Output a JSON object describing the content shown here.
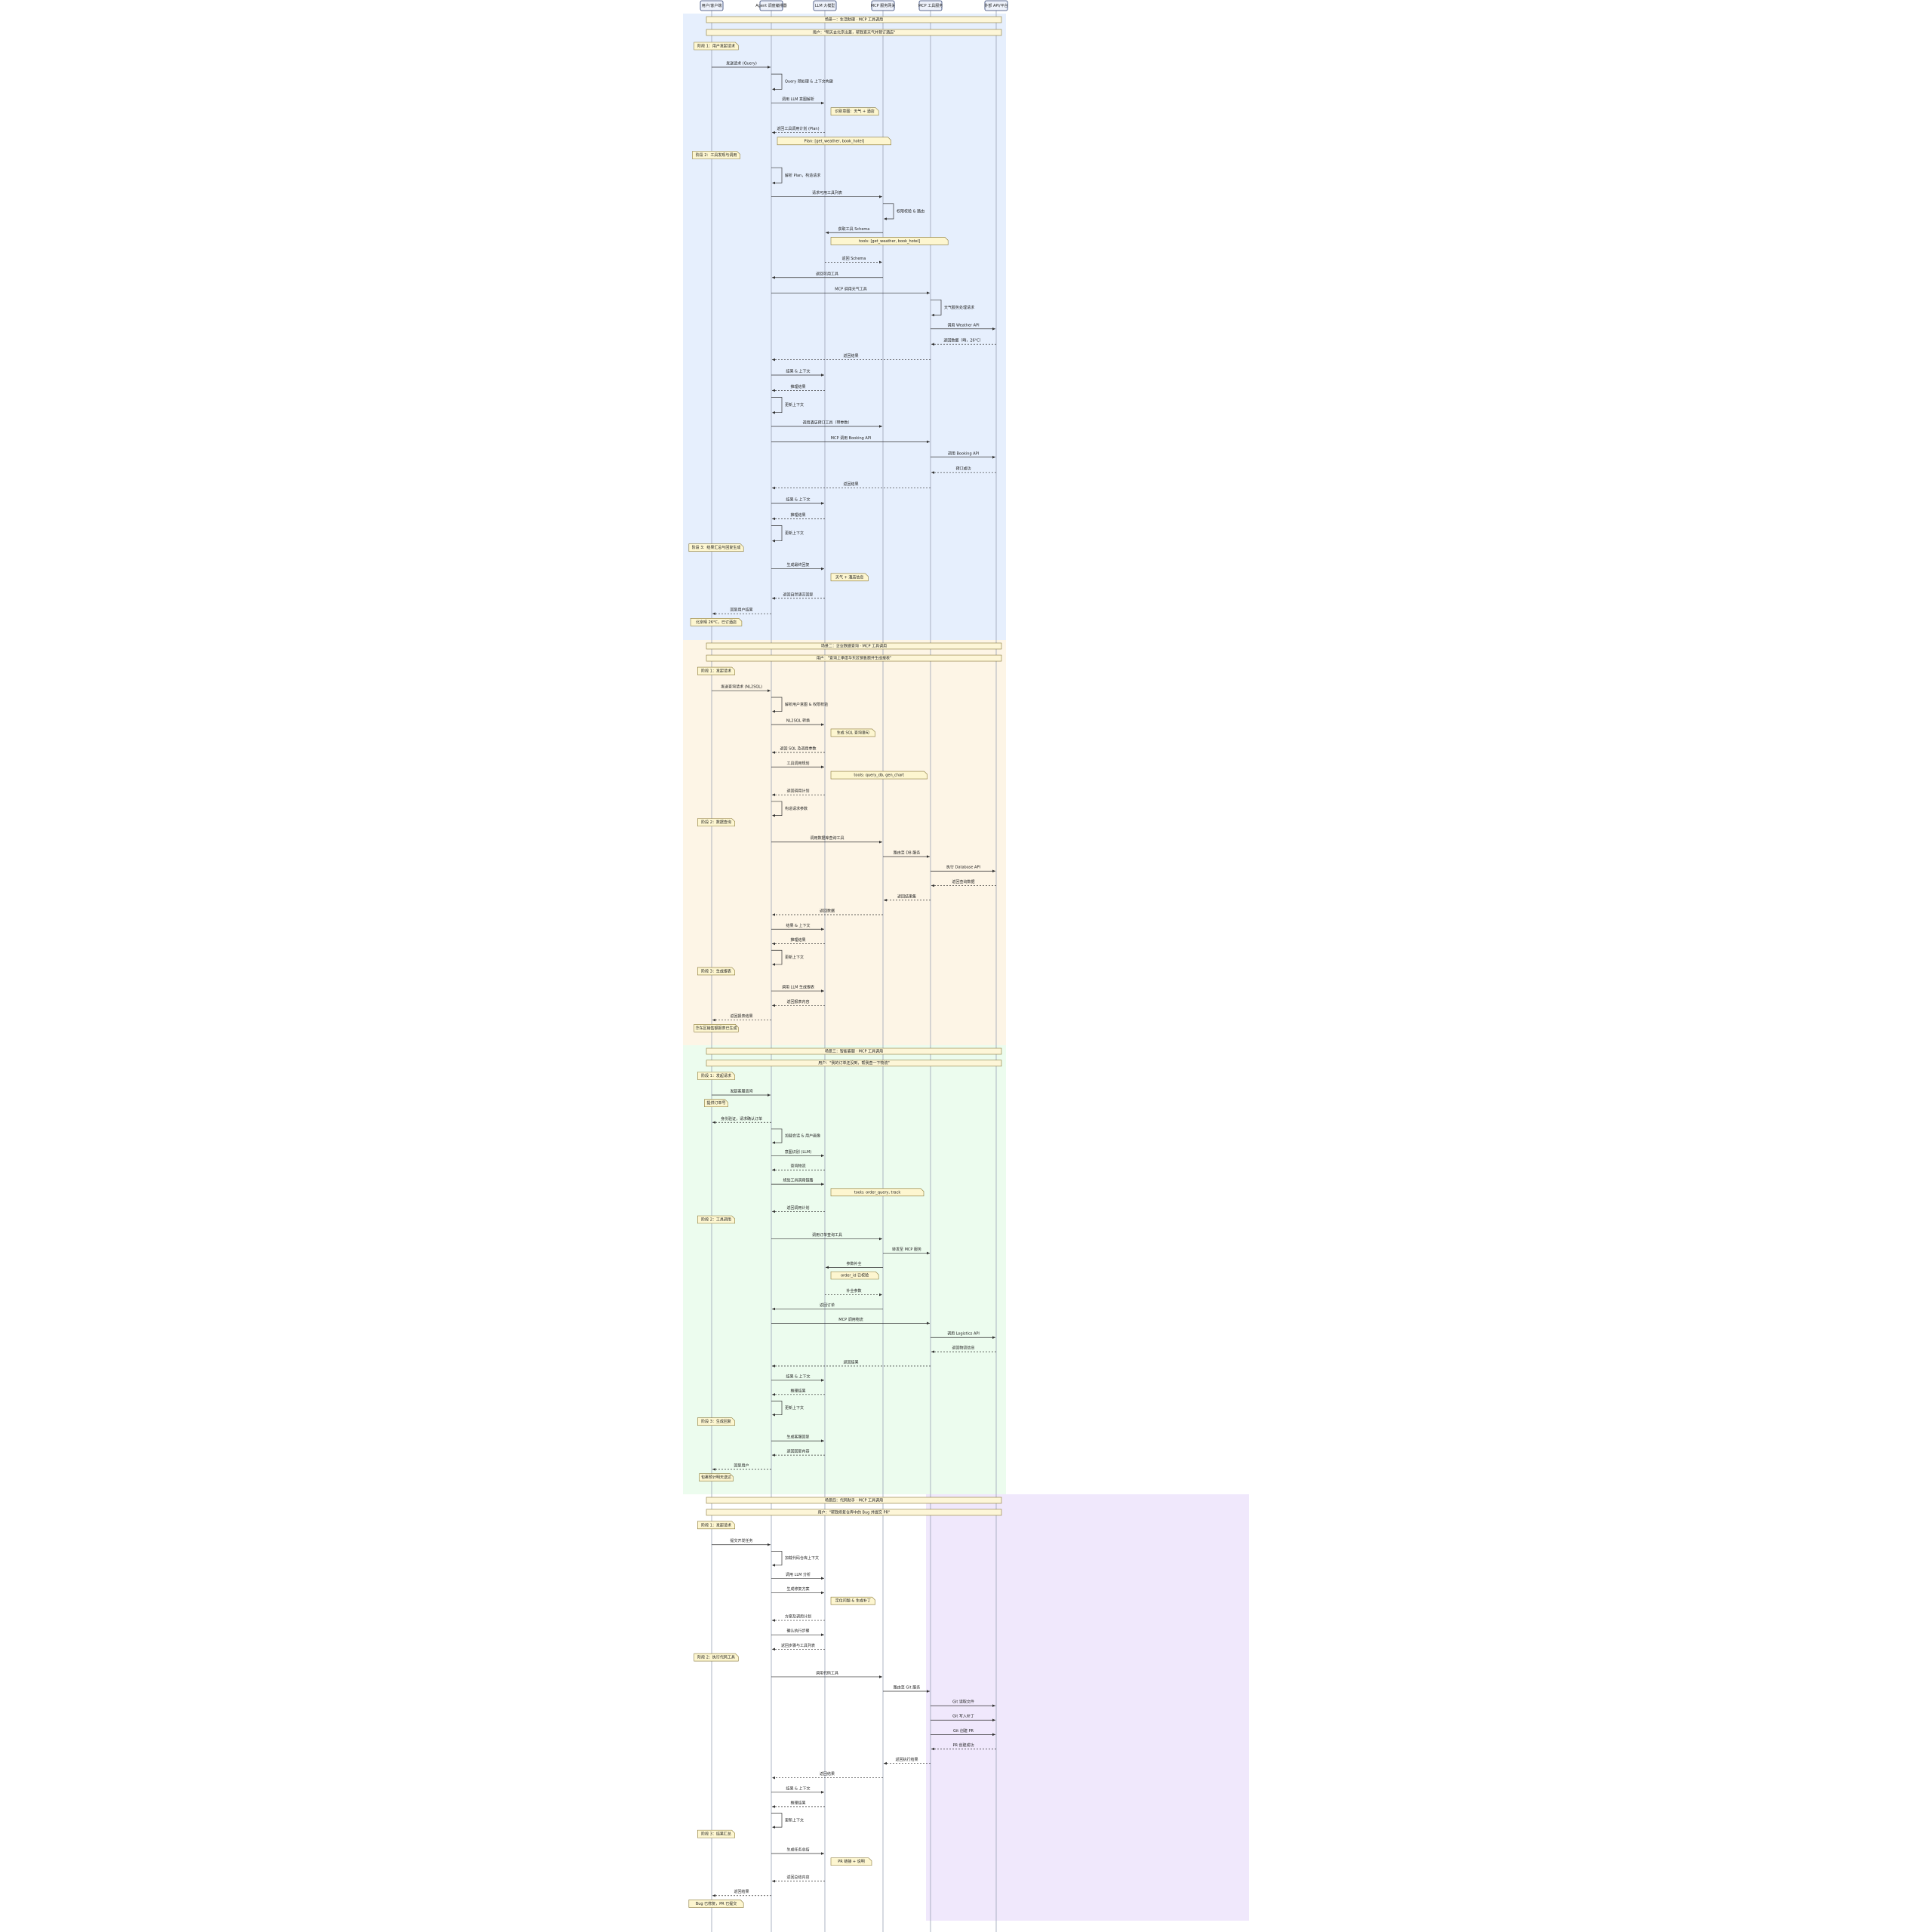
{
  "participants": [
    "用户/客户端",
    "Agent 调度编排器",
    "LLM 大模型",
    "MCP 服务网关",
    "MCP 工具服务",
    "外部 API/平台"
  ],
  "scenarios": [
    {
      "color": "#e6effd",
      "events": [
        {
          "kind": "banner",
          "text": "场景一：生活助理 · MCP 工具调用"
        },
        {
          "kind": "banner",
          "text": "用户：\"明天去北京出差，帮我查天气并预订酒店\""
        },
        {
          "kind": "note",
          "at": 0,
          "text": "阶段 1：用户发起请求"
        },
        {
          "kind": "msg",
          "from": 0,
          "to": 1,
          "text": "发送请求 (Query)"
        },
        {
          "kind": "self",
          "at": 1,
          "text": "Query 预处理 & 上下文构建"
        },
        {
          "kind": "msg",
          "from": 1,
          "to": 2,
          "text": "调用 LLM 意图解析"
        },
        {
          "kind": "note",
          "at": 2,
          "text": "识别意图：天气 + 酒店"
        },
        {
          "kind": "msg",
          "from": 2,
          "to": 1,
          "dashed": true,
          "text": "返回工具调用计划 (Plan)"
        },
        {
          "kind": "note",
          "at": 1,
          "text": "Plan: [get_weather, book_hotel]"
        },
        {
          "kind": "note",
          "at": 0,
          "text": "阶段 2：工具发现与调用"
        },
        {
          "kind": "self",
          "at": 1,
          "text": "解析 Plan，构造请求"
        },
        {
          "kind": "msg",
          "from": 1,
          "to": 3,
          "text": "请求可用工具列表"
        },
        {
          "kind": "self",
          "at": 3,
          "text": "权限校验 & 路由"
        },
        {
          "kind": "msg",
          "from": 3,
          "to": 2,
          "text": "获取工具 Schema"
        },
        {
          "kind": "note",
          "at": 2,
          "text": "tools: [get_weather, book_hotel]"
        },
        {
          "kind": "msg",
          "from": 2,
          "to": 3,
          "dashed": true,
          "text": "返回 Schema"
        },
        {
          "kind": "msg",
          "from": 3,
          "to": 1,
          "text": "返回可用工具"
        },
        {
          "kind": "msg",
          "from": 1,
          "to": 4,
          "text": "MCP 调用天气工具"
        },
        {
          "kind": "self",
          "at": 4,
          "text": "天气服务处理请求"
        },
        {
          "kind": "msg",
          "from": 4,
          "to": 5,
          "text": "调用 Weather API"
        },
        {
          "kind": "msg",
          "from": 5,
          "to": 4,
          "dashed": true,
          "text": "返回数据（晴，26°C）"
        },
        {
          "kind": "msg",
          "from": 4,
          "to": 1,
          "dashed": true,
          "text": "返回结果"
        },
        {
          "kind": "msg",
          "from": 1,
          "to": 2,
          "text": "结果 & 上下文"
        },
        {
          "kind": "msg",
          "from": 2,
          "to": 1,
          "dashed": true,
          "text": "推理结果"
        },
        {
          "kind": "self",
          "at": 1,
          "text": "更新上下文"
        },
        {
          "kind": "msg",
          "from": 1,
          "to": 3,
          "text": "调用酒店预订工具（带参数）"
        },
        {
          "kind": "msg",
          "from": 1,
          "to": 4,
          "text": "MCP 调用 Booking API"
        },
        {
          "kind": "msg",
          "from": 4,
          "to": 5,
          "text": "调用 Booking API"
        },
        {
          "kind": "msg",
          "from": 5,
          "to": 4,
          "dashed": true,
          "text": "预订成功"
        },
        {
          "kind": "msg",
          "from": 4,
          "to": 1,
          "dashed": true,
          "text": "返回结果"
        },
        {
          "kind": "msg",
          "from": 1,
          "to": 2,
          "text": "结果 & 上下文"
        },
        {
          "kind": "msg",
          "from": 2,
          "to": 1,
          "dashed": true,
          "text": "推理结果"
        },
        {
          "kind": "self",
          "at": 1,
          "text": "更新上下文"
        },
        {
          "kind": "note",
          "at": 0,
          "text": "阶段 3：结果汇总与回复生成"
        },
        {
          "kind": "msg",
          "from": 1,
          "to": 2,
          "text": "生成最终回复"
        },
        {
          "kind": "note",
          "at": 2,
          "text": "天气 + 酒店信息"
        },
        {
          "kind": "msg",
          "from": 2,
          "to": 1,
          "dashed": true,
          "text": "返回自然语言回复"
        },
        {
          "kind": "msg",
          "from": 1,
          "to": 0,
          "dashed": true,
          "text": "回复用户结果"
        },
        {
          "kind": "note",
          "at": 0,
          "text": "北京晴 26°C，已订酒店"
        }
      ]
    },
    {
      "color": "#fdf5e6",
      "events": [
        {
          "kind": "banner",
          "text": "场景二：企业数据查询 · MCP 工具调用"
        },
        {
          "kind": "banner",
          "text": "用户：\"查询上季度华东区销售额并生成报表\""
        },
        {
          "kind": "note",
          "at": 0,
          "text": "阶段 1：发起请求"
        },
        {
          "kind": "msg",
          "from": 0,
          "to": 1,
          "text": "发送查询请求 (NL2SQL)"
        },
        {
          "kind": "self",
          "at": 1,
          "text": "解析用户意图 & 权限校验"
        },
        {
          "kind": "msg",
          "from": 1,
          "to": 2,
          "text": "NL2SQL 转换"
        },
        {
          "kind": "note",
          "at": 2,
          "text": "生成 SQL 查询语句"
        },
        {
          "kind": "msg",
          "from": 2,
          "to": 1,
          "dashed": true,
          "text": "返回 SQL 及调用参数"
        },
        {
          "kind": "msg",
          "from": 1,
          "to": 2,
          "text": "工具调用规划"
        },
        {
          "kind": "note",
          "at": 2,
          "text": "tools: query_db, gen_chart"
        },
        {
          "kind": "msg",
          "from": 2,
          "to": 1,
          "dashed": true,
          "text": "返回调用计划"
        },
        {
          "kind": "self",
          "at": 1,
          "text": "构造请求参数"
        },
        {
          "kind": "note",
          "at": 0,
          "text": "阶段 2：数据查询"
        },
        {
          "kind": "msg",
          "from": 1,
          "to": 3,
          "text": "调用数据库查询工具"
        },
        {
          "kind": "msg",
          "from": 3,
          "to": 4,
          "text": "路由至 DB 服务"
        },
        {
          "kind": "msg",
          "from": 4,
          "to": 5,
          "text": "执行 Database API"
        },
        {
          "kind": "msg",
          "from": 5,
          "to": 4,
          "dashed": true,
          "text": "返回查询数据"
        },
        {
          "kind": "msg",
          "from": 4,
          "to": 3,
          "dashed": true,
          "text": "返回结果集"
        },
        {
          "kind": "msg",
          "from": 3,
          "to": 1,
          "dashed": true,
          "text": "返回数据"
        },
        {
          "kind": "msg",
          "from": 1,
          "to": 2,
          "text": "结果 & 上下文"
        },
        {
          "kind": "msg",
          "from": 2,
          "to": 1,
          "dashed": true,
          "text": "推理结果"
        },
        {
          "kind": "self",
          "at": 1,
          "text": "更新上下文"
        },
        {
          "kind": "note",
          "at": 0,
          "text": "阶段 3：生成报表"
        },
        {
          "kind": "msg",
          "from": 1,
          "to": 2,
          "text": "调用 LLM 生成报表"
        },
        {
          "kind": "msg",
          "from": 2,
          "to": 1,
          "dashed": true,
          "text": "返回报表内容"
        },
        {
          "kind": "msg",
          "from": 1,
          "to": 0,
          "dashed": true,
          "text": "返回报表结果"
        },
        {
          "kind": "note",
          "at": 0,
          "text": "华东区销售额报表已生成"
        }
      ]
    },
    {
      "color": "#ecfcee",
      "events": [
        {
          "kind": "banner",
          "text": "场景三：智能客服 · MCP 工具调用"
        },
        {
          "kind": "banner",
          "text": "用户：\"我的订单还没到，帮我查一下物流\""
        },
        {
          "kind": "note",
          "at": 0,
          "text": "阶段 1：发起请求"
        },
        {
          "kind": "msg",
          "from": 0,
          "to": 1,
          "text": "发起客服咨询"
        },
        {
          "kind": "note",
          "at": 0,
          "text": "提供订单号"
        },
        {
          "kind": "msg",
          "from": 1,
          "to": 0,
          "dashed": true,
          "text": "身份验证，请求确认订单"
        },
        {
          "kind": "self",
          "at": 1,
          "text": "加载会话 & 用户画像"
        },
        {
          "kind": "msg",
          "from": 1,
          "to": 2,
          "text": "意图识别 (LLM)"
        },
        {
          "kind": "msg",
          "from": 2,
          "to": 1,
          "dashed": true,
          "text": "查询物流"
        },
        {
          "kind": "msg",
          "from": 1,
          "to": 2,
          "text": "规划工具调用链路"
        },
        {
          "kind": "note",
          "at": 2,
          "text": "tools: order_query, track"
        },
        {
          "kind": "msg",
          "from": 2,
          "to": 1,
          "dashed": true,
          "text": "返回调用计划"
        },
        {
          "kind": "note",
          "at": 0,
          "text": "阶段 2：工具调用"
        },
        {
          "kind": "msg",
          "from": 1,
          "to": 3,
          "text": "调用订单查询工具"
        },
        {
          "kind": "msg",
          "from": 3,
          "to": 4,
          "text": "转发至 MCP 服务"
        },
        {
          "kind": "msg",
          "from": 3,
          "to": 2,
          "text": "参数补全"
        },
        {
          "kind": "note",
          "at": 2,
          "text": "order_id 已校验"
        },
        {
          "kind": "msg",
          "from": 2,
          "to": 3,
          "dashed": true,
          "text": "补全参数"
        },
        {
          "kind": "msg",
          "from": 3,
          "to": 1,
          "text": "返回订单"
        },
        {
          "kind": "msg",
          "from": 1,
          "to": 4,
          "text": "MCP 调用物流"
        },
        {
          "kind": "msg",
          "from": 4,
          "to": 5,
          "text": "调用 Logistics API"
        },
        {
          "kind": "msg",
          "from": 5,
          "to": 4,
          "dashed": true,
          "text": "返回物流信息"
        },
        {
          "kind": "msg",
          "from": 4,
          "to": 1,
          "dashed": true,
          "text": "返回结果"
        },
        {
          "kind": "msg",
          "from": 1,
          "to": 2,
          "text": "结果 & 上下文"
        },
        {
          "kind": "msg",
          "from": 2,
          "to": 1,
          "dashed": true,
          "text": "推理结果"
        },
        {
          "kind": "self",
          "at": 1,
          "text": "更新上下文"
        },
        {
          "kind": "note",
          "at": 0,
          "text": "阶段 3：生成回复"
        },
        {
          "kind": "msg",
          "from": 1,
          "to": 2,
          "text": "生成客服回复"
        },
        {
          "kind": "msg",
          "from": 2,
          "to": 1,
          "dashed": true,
          "text": "返回回复内容"
        },
        {
          "kind": "msg",
          "from": 1,
          "to": 0,
          "dashed": true,
          "text": "回复用户"
        },
        {
          "kind": "note",
          "at": 0,
          "text": "包裹预计明天送达"
        }
      ]
    },
    {
      "color": "#f0e8fc",
      "events": [
        {
          "kind": "banner",
          "text": "场景四：代码助手 · MCP 工具调用"
        },
        {
          "kind": "banner",
          "text": "用户：\"帮我修复仓库中的 Bug 并提交 PR\""
        },
        {
          "kind": "note",
          "at": 0,
          "text": "阶段 1：发起请求"
        },
        {
          "kind": "msg",
          "from": 0,
          "to": 1,
          "text": "提交开发任务"
        },
        {
          "kind": "self",
          "at": 1,
          "text": "加载代码仓库上下文"
        },
        {
          "kind": "msg",
          "from": 1,
          "to": 2,
          "text": "调用 LLM 分析"
        },
        {
          "kind": "msg",
          "from": 1,
          "to": 2,
          "text": "生成修复方案"
        },
        {
          "kind": "note",
          "at": 2,
          "text": "定位问题 & 生成补丁"
        },
        {
          "kind": "msg",
          "from": 2,
          "to": 1,
          "dashed": true,
          "text": "方案及调用计划"
        },
        {
          "kind": "msg",
          "from": 1,
          "to": 2,
          "text": "确认执行步骤"
        },
        {
          "kind": "msg",
          "from": 2,
          "to": 1,
          "dashed": true,
          "text": "返回步骤与工具列表"
        },
        {
          "kind": "note",
          "at": 0,
          "text": "阶段 2：执行代码工具"
        },
        {
          "kind": "msg",
          "from": 1,
          "to": 3,
          "text": "调用代码工具"
        },
        {
          "kind": "msg",
          "from": 3,
          "to": 4,
          "text": "路由至 Git 服务"
        },
        {
          "kind": "msg",
          "from": 4,
          "to": 5,
          "text": "Git 读取文件"
        },
        {
          "kind": "msg",
          "from": 4,
          "to": 5,
          "text": "Git 写入补丁"
        },
        {
          "kind": "msg",
          "from": 4,
          "to": 5,
          "text": "Git 创建 PR"
        },
        {
          "kind": "msg",
          "from": 5,
          "to": 4,
          "dashed": true,
          "text": "PR 创建成功"
        },
        {
          "kind": "msg",
          "from": 4,
          "to": 3,
          "dashed": true,
          "text": "返回执行结果"
        },
        {
          "kind": "msg",
          "from": 3,
          "to": 1,
          "dashed": true,
          "text": "返回结果"
        },
        {
          "kind": "msg",
          "from": 1,
          "to": 2,
          "text": "结果 & 上下文"
        },
        {
          "kind": "msg",
          "from": 2,
          "to": 1,
          "dashed": true,
          "text": "推理结果"
        },
        {
          "kind": "self",
          "at": 1,
          "text": "更新上下文"
        },
        {
          "kind": "note",
          "at": 0,
          "text": "阶段 3：结果汇总"
        },
        {
          "kind": "msg",
          "from": 1,
          "to": 2,
          "text": "生成任务总结"
        },
        {
          "kind": "note",
          "at": 2,
          "text": "PR 链接 + 说明"
        },
        {
          "kind": "msg",
          "from": 2,
          "to": 1,
          "dashed": true,
          "text": "返回总结内容"
        },
        {
          "kind": "msg",
          "from": 1,
          "to": 0,
          "dashed": true,
          "text": "返回结果"
        },
        {
          "kind": "note",
          "at": 0,
          "text": "Bug 已修复，PR 已提交"
        }
      ]
    }
  ]
}
